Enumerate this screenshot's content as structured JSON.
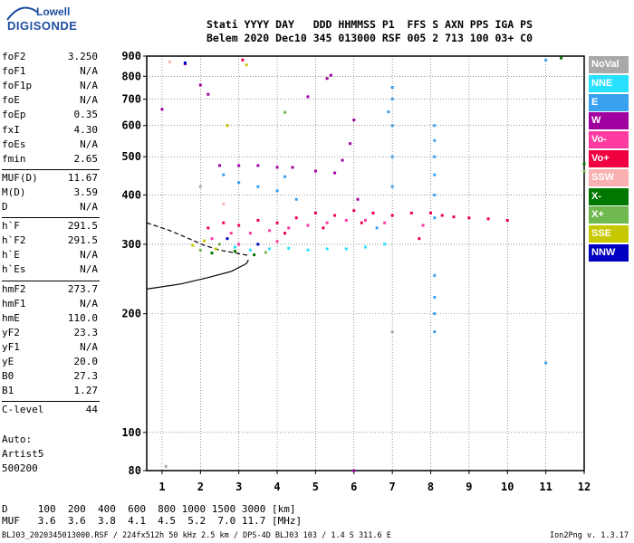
{
  "logo": {
    "line1": "Lowell",
    "line2": "DIGISONDE"
  },
  "header": {
    "labels": "Stati YYYY DAY   DDD HHMMSS P1  FFS S AXN PPS IGA PS",
    "values": "Belem 2020 Dec10 345 013000 RSF 005 2 713 100 03+ C0"
  },
  "params": [
    {
      "k": "foF2",
      "v": "3.250"
    },
    {
      "k": "foF1",
      "v": "N/A"
    },
    {
      "k": "foF1p",
      "v": "N/A"
    },
    {
      "k": "foE",
      "v": "N/A"
    },
    {
      "k": "foEp",
      "v": "0.35"
    },
    {
      "k": "fxI",
      "v": "4.30"
    },
    {
      "k": "foEs",
      "v": "N/A"
    },
    {
      "k": "fmin",
      "v": "2.65"
    },
    {
      "k": "MUF(D)",
      "v": "11.67"
    },
    {
      "k": "M(D)",
      "v": "3.59"
    },
    {
      "k": "D",
      "v": "N/A"
    },
    {
      "k": "h`F",
      "v": "291.5"
    },
    {
      "k": "h`F2",
      "v": "291.5"
    },
    {
      "k": "h`E",
      "v": "N/A"
    },
    {
      "k": "h`Es",
      "v": "N/A"
    },
    {
      "k": "hmF2",
      "v": "273.7"
    },
    {
      "k": "hmF1",
      "v": "N/A"
    },
    {
      "k": "hmE",
      "v": "110.0"
    },
    {
      "k": "yF2",
      "v": "23.3"
    },
    {
      "k": "yF1",
      "v": "N/A"
    },
    {
      "k": "yE",
      "v": "20.0"
    },
    {
      "k": "B0",
      "v": "27.3"
    },
    {
      "k": "B1",
      "v": "1.27"
    },
    {
      "k": "C-level",
      "v": "44"
    }
  ],
  "auto": [
    "Auto:",
    "Artist5",
    "500200"
  ],
  "muf_table": {
    "d_row": "D     100  200  400  600  800 1000 1500 3000 [km]",
    "muf_row": "MUF   3.6  3.6  3.8  4.1  4.5  5.2  7.0 11.7 [MHz]"
  },
  "footer": "BLJ03_2020345013000.RSF / 224fx512h 50 kHz 2.5 km / DPS-4D BLJ03 103 / 1.4 S 311.6 E",
  "version": "Ion2Png v. 1.3.17",
  "legend": [
    {
      "label": "NoVal",
      "color": "#a8a8a8"
    },
    {
      "label": "NNE",
      "color": "#28e0ff"
    },
    {
      "label": "E",
      "color": "#3aa0f0"
    },
    {
      "label": "W",
      "color": "#a000a0"
    },
    {
      "label": "Vo-",
      "color": "#ff3aa0"
    },
    {
      "label": "Vo+",
      "color": "#f00040"
    },
    {
      "label": "SSW",
      "color": "#f8b0b0"
    },
    {
      "label": "X-",
      "color": "#007800"
    },
    {
      "label": "X+",
      "color": "#70b850"
    },
    {
      "label": "SSE",
      "color": "#c8c800"
    },
    {
      "label": "NNW",
      "color": "#0000c0"
    }
  ],
  "chart_data": {
    "type": "scatter",
    "title": "",
    "xlabel": "",
    "ylabel": "",
    "xlim": [
      0.6,
      12
    ],
    "ylim": [
      80,
      900
    ],
    "y_scale": "log",
    "grid": true,
    "x_ticks": [
      1,
      2,
      3,
      4,
      5,
      6,
      7,
      8,
      9,
      10,
      11,
      12
    ],
    "y_ticks": [
      80,
      100,
      200,
      300,
      400,
      500,
      600,
      700,
      800,
      900
    ],
    "profile": [
      [
        0.6,
        231
      ],
      [
        1.5,
        238
      ],
      [
        2.2,
        247
      ],
      [
        2.8,
        256
      ],
      [
        3.2,
        268
      ],
      [
        3.25,
        274
      ]
    ],
    "dashed_trace": [
      [
        0.6,
        340
      ],
      [
        1.2,
        325
      ],
      [
        1.7,
        310
      ],
      [
        2.1,
        298
      ],
      [
        2.5,
        290
      ],
      [
        3.0,
        284
      ],
      [
        3.25,
        281
      ]
    ],
    "series": [
      {
        "name": "E",
        "color": "#3aa0f0",
        "points": [
          [
            8.1,
            350
          ],
          [
            8.1,
            400
          ],
          [
            8.1,
            450
          ],
          [
            8.1,
            500
          ],
          [
            8.1,
            550
          ],
          [
            8.1,
            600
          ],
          [
            8.1,
            250
          ],
          [
            8.1,
            220
          ],
          [
            8.1,
            200
          ],
          [
            8.1,
            180
          ],
          [
            7.0,
            420
          ],
          [
            7.0,
            500
          ],
          [
            7.0,
            600
          ],
          [
            7.0,
            700
          ],
          [
            7.0,
            750
          ],
          [
            6.9,
            650
          ],
          [
            6.6,
            330
          ],
          [
            2.6,
            450
          ],
          [
            3.0,
            430
          ],
          [
            3.5,
            420
          ],
          [
            4.0,
            410
          ],
          [
            4.5,
            390
          ],
          [
            4.2,
            445
          ],
          [
            11.0,
            880
          ],
          [
            11.0,
            150
          ]
        ]
      },
      {
        "name": "W",
        "color": "#a000a0",
        "points": [
          [
            2.5,
            475
          ],
          [
            3.0,
            475
          ],
          [
            3.5,
            475
          ],
          [
            4.0,
            470
          ],
          [
            4.4,
            470
          ],
          [
            5.0,
            460
          ],
          [
            5.5,
            455
          ],
          [
            2.2,
            720
          ],
          [
            2.0,
            760
          ],
          [
            5.3,
            790
          ],
          [
            5.4,
            805
          ],
          [
            6.0,
            620
          ],
          [
            5.9,
            540
          ],
          [
            5.7,
            490
          ],
          [
            6.1,
            390
          ],
          [
            6.0,
            80
          ],
          [
            4.8,
            710
          ],
          [
            1.0,
            660
          ],
          [
            1.6,
            860
          ]
        ]
      },
      {
        "name": "Vo+",
        "color": "#f00040",
        "points": [
          [
            2.2,
            330
          ],
          [
            2.6,
            340
          ],
          [
            3.0,
            335
          ],
          [
            3.5,
            345
          ],
          [
            4.0,
            340
          ],
          [
            4.5,
            350
          ],
          [
            5.0,
            360
          ],
          [
            5.5,
            355
          ],
          [
            6.0,
            365
          ],
          [
            6.5,
            360
          ],
          [
            7.0,
            355
          ],
          [
            7.5,
            360
          ],
          [
            8.0,
            360
          ],
          [
            8.3,
            355
          ],
          [
            8.6,
            352
          ],
          [
            9.0,
            350
          ],
          [
            9.5,
            348
          ],
          [
            10.0,
            345
          ],
          [
            4.2,
            320
          ],
          [
            5.2,
            330
          ],
          [
            6.2,
            340
          ],
          [
            7.7,
            310
          ],
          [
            3.1,
            880
          ]
        ]
      },
      {
        "name": "Vo-",
        "color": "#ff3aa0",
        "points": [
          [
            2.3,
            310
          ],
          [
            2.8,
            320
          ],
          [
            3.3,
            320
          ],
          [
            3.8,
            325
          ],
          [
            4.3,
            330
          ],
          [
            4.8,
            335
          ],
          [
            5.3,
            340
          ],
          [
            5.8,
            345
          ],
          [
            6.3,
            345
          ],
          [
            6.8,
            340
          ],
          [
            7.8,
            335
          ],
          [
            3.0,
            300
          ],
          [
            4.0,
            305
          ]
        ]
      },
      {
        "name": "NNE",
        "color": "#28e0ff",
        "points": [
          [
            3.3,
            290
          ],
          [
            3.8,
            292
          ],
          [
            4.3,
            293
          ],
          [
            4.8,
            290
          ],
          [
            5.3,
            292
          ],
          [
            5.8,
            292
          ],
          [
            6.3,
            295
          ],
          [
            6.8,
            300
          ],
          [
            2.9,
            295
          ]
        ]
      },
      {
        "name": "X-",
        "color": "#007800",
        "points": [
          [
            2.3,
            285
          ],
          [
            2.9,
            288
          ],
          [
            3.4,
            282
          ],
          [
            11.4,
            890
          ],
          [
            12.0,
            480
          ]
        ]
      },
      {
        "name": "X+",
        "color": "#70b850",
        "points": [
          [
            2.0,
            290
          ],
          [
            2.5,
            300
          ],
          [
            3.7,
            286
          ],
          [
            12.0,
            460
          ],
          [
            4.2,
            648
          ]
        ]
      },
      {
        "name": "SSE",
        "color": "#c8c800",
        "points": [
          [
            1.8,
            298
          ],
          [
            2.1,
            306
          ],
          [
            2.4,
            292
          ],
          [
            2.7,
            600
          ],
          [
            3.2,
            855
          ]
        ]
      },
      {
        "name": "NNW",
        "color": "#0000c0",
        "points": [
          [
            1.6,
            865
          ],
          [
            2.7,
            310
          ],
          [
            3.5,
            300
          ]
        ]
      },
      {
        "name": "SSW",
        "color": "#f8b0b0",
        "points": [
          [
            1.2,
            870
          ],
          [
            2.6,
            380
          ]
        ]
      },
      {
        "name": "NoVal",
        "color": "#a8a8a8",
        "points": [
          [
            1.1,
            82
          ],
          [
            2.0,
            420
          ],
          [
            7.0,
            180
          ]
        ]
      }
    ]
  }
}
